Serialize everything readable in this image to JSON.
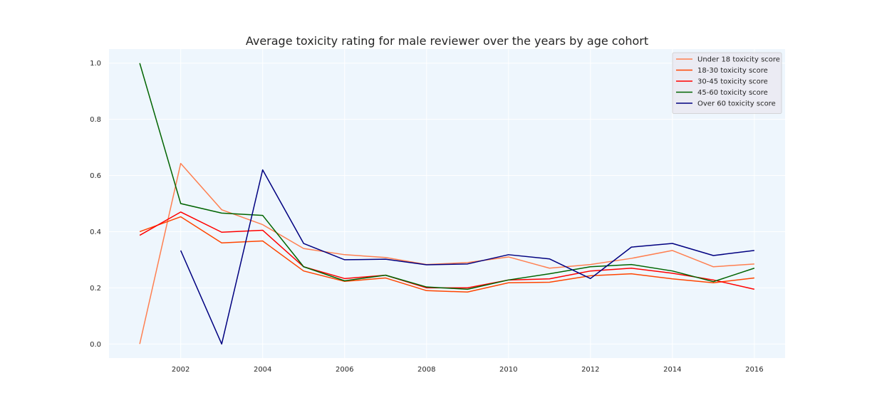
{
  "chart_data": {
    "type": "line",
    "title": "Average toxicity rating for male reviewer over the years by age cohort",
    "xlabel": "",
    "ylabel": "",
    "x": [
      2001,
      2002,
      2003,
      2004,
      2005,
      2006,
      2007,
      2008,
      2009,
      2010,
      2011,
      2012,
      2013,
      2014,
      2015,
      2016
    ],
    "xlim": [
      2000.25,
      2016.75
    ],
    "ylim": [
      -0.05,
      1.05
    ],
    "xticks": [
      2002,
      2004,
      2006,
      2008,
      2010,
      2012,
      2014,
      2016
    ],
    "yticks": [
      0.0,
      0.2,
      0.4,
      0.6,
      0.8,
      1.0
    ],
    "xtick_labels": [
      "2002",
      "2004",
      "2006",
      "2008",
      "2010",
      "2012",
      "2014",
      "2016"
    ],
    "ytick_labels": [
      "0.0",
      "0.2",
      "0.4",
      "0.6",
      "0.8",
      "1.0"
    ],
    "grid": true,
    "legend_position": "top-right",
    "plot_background": "#eef6fd",
    "grid_color": "#ffffff",
    "series": [
      {
        "name": "Under 18 toxicity score",
        "color": "#ff7f50",
        "values": [
          0.0,
          0.643,
          0.478,
          0.425,
          0.34,
          0.318,
          0.308,
          0.283,
          0.29,
          0.31,
          0.27,
          0.283,
          0.305,
          0.333,
          0.275,
          0.285
        ]
      },
      {
        "name": "18-30 toxicity score",
        "color": "#ff4500",
        "values": [
          0.4,
          0.453,
          0.36,
          0.367,
          0.26,
          0.223,
          0.235,
          0.19,
          0.185,
          0.218,
          0.22,
          0.243,
          0.25,
          0.232,
          0.218,
          0.235
        ]
      },
      {
        "name": "30-45 toxicity score",
        "color": "#ff0000",
        "values": [
          0.387,
          0.47,
          0.398,
          0.405,
          0.275,
          0.233,
          0.245,
          0.2,
          0.2,
          0.228,
          0.232,
          0.26,
          0.27,
          0.252,
          0.228,
          0.195
        ]
      },
      {
        "name": "45-60 toxicity score",
        "color": "#006400",
        "values": [
          1.0,
          0.5,
          0.466,
          0.458,
          0.275,
          0.225,
          0.245,
          0.203,
          0.195,
          0.228,
          0.25,
          0.275,
          0.283,
          0.26,
          0.222,
          0.27
        ]
      },
      {
        "name": "Over 60 toxicity score",
        "color": "#000080",
        "values": [
          null,
          0.333,
          0.0,
          0.62,
          0.358,
          0.3,
          0.302,
          0.282,
          0.285,
          0.318,
          0.303,
          0.233,
          0.345,
          0.358,
          0.315,
          0.333
        ]
      }
    ]
  }
}
